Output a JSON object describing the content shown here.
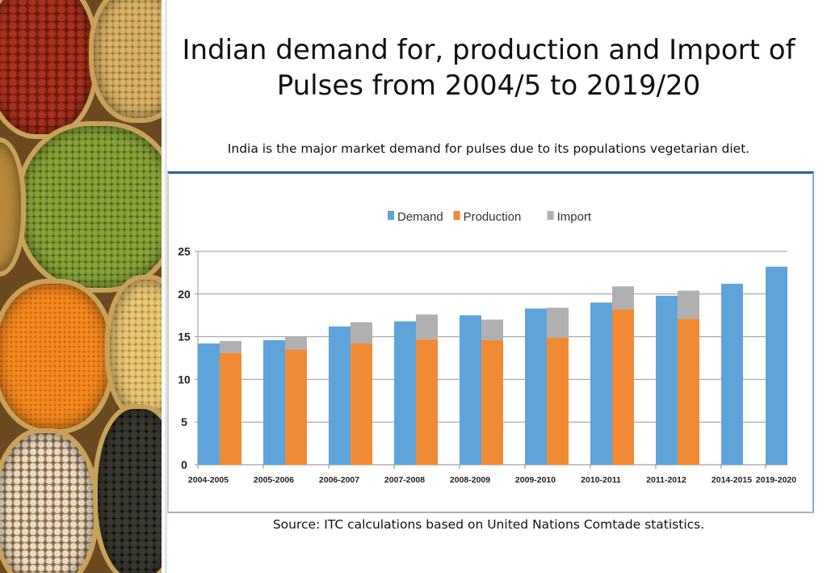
{
  "slide": {
    "title_line1": "Indian demand for, production and Import of",
    "title_line2": "Pulses from 2004/5 to 2019/20",
    "subtitle": "India is the major market demand for pulses due to its populations vegetarian diet.",
    "source": "Source: ITC calculations based on United Nations Comtade statistics."
  },
  "chart_data": {
    "type": "bar",
    "title": "",
    "xlabel": "",
    "ylabel": "",
    "ylim": [
      0,
      25
    ],
    "yticks": [
      "0",
      "5",
      "10",
      "15",
      "20",
      "25"
    ],
    "grid": true,
    "legend_position": "top-center",
    "categories": [
      "2004-2005",
      "2005-2006",
      "2006-2007",
      "2007-2008",
      "2008-2009",
      "2009-2010",
      "2010-2011",
      "2011-2012",
      "2014-2015",
      "2019-2020"
    ],
    "series": [
      {
        "name": "Demand",
        "color": "#5fa3db",
        "values": [
          14.2,
          14.6,
          16.2,
          16.8,
          17.5,
          18.3,
          19.0,
          19.8,
          21.2,
          23.2
        ]
      },
      {
        "name": "Production",
        "color": "#f08a35",
        "stack": "supply",
        "values": [
          13.1,
          13.5,
          14.2,
          14.7,
          14.6,
          14.9,
          18.2,
          17.1,
          null,
          null
        ]
      },
      {
        "name": "Import",
        "color": "#b0b0b0",
        "stack": "supply",
        "values": [
          1.4,
          1.5,
          2.5,
          2.9,
          2.4,
          3.5,
          2.7,
          3.3,
          null,
          null
        ]
      }
    ]
  }
}
